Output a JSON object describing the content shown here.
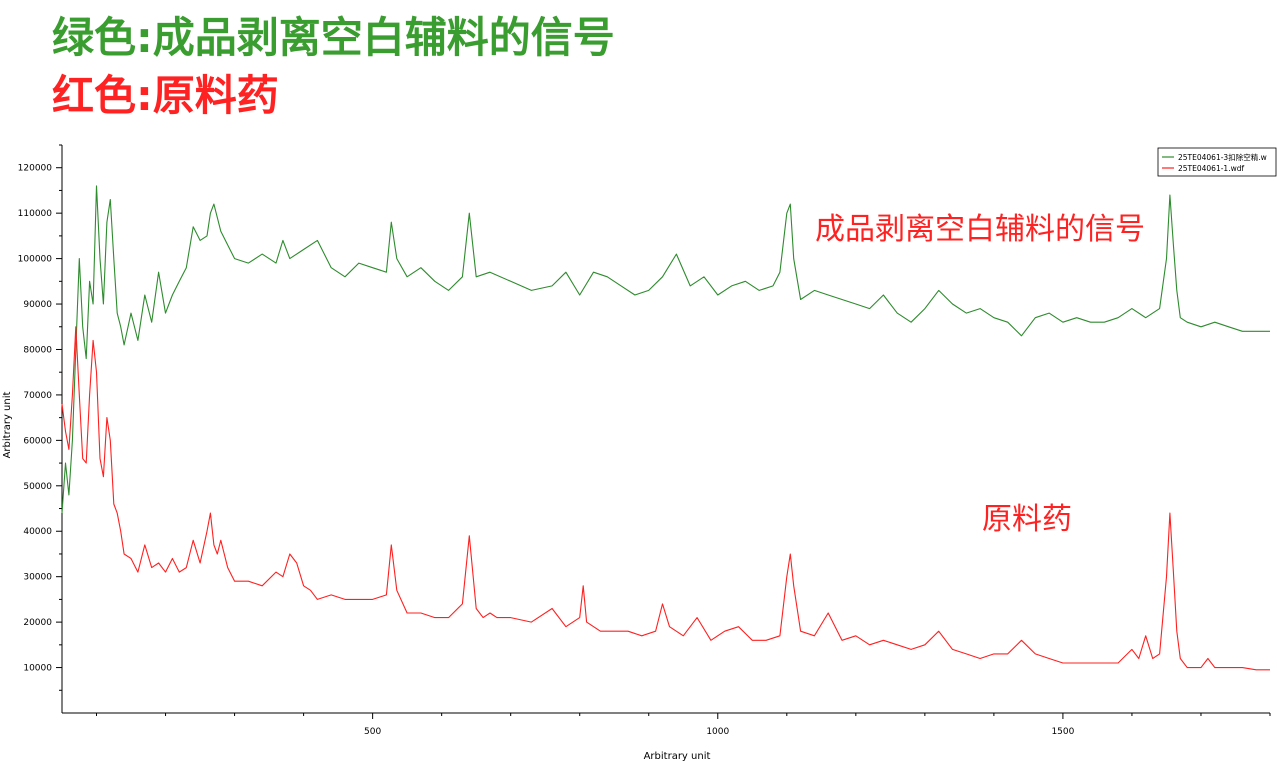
{
  "headings": {
    "green_line": "绿色:成品剥离空白辅料的信号",
    "red_line": "红色:原料药"
  },
  "annotations": {
    "green": "成品剥离空白辅料的信号",
    "red": "原料药"
  },
  "colors": {
    "green": "#3a9d2f",
    "red": "#ff2222",
    "green_series": "#2e8b2e",
    "red_series": "#ff2020"
  },
  "chart_data": {
    "type": "line",
    "xlabel": "Arbitrary unit",
    "ylabel": "Arbitrary unit",
    "xlim": [
      50,
      1800
    ],
    "ylim": [
      0,
      125000
    ],
    "xticks": [
      500,
      1000,
      1500
    ],
    "yticks": [
      10000,
      20000,
      30000,
      40000,
      50000,
      60000,
      70000,
      80000,
      90000,
      100000,
      110000,
      120000
    ],
    "legend_position": "top-right",
    "grid": false,
    "series": [
      {
        "name": "25TE04061-3扣除空精.w",
        "color": "green",
        "x": [
          50,
          55,
          60,
          65,
          70,
          75,
          80,
          85,
          90,
          95,
          100,
          105,
          110,
          115,
          120,
          125,
          130,
          135,
          140,
          150,
          160,
          170,
          180,
          190,
          200,
          210,
          220,
          230,
          240,
          250,
          260,
          265,
          270,
          280,
          290,
          300,
          320,
          340,
          360,
          370,
          380,
          400,
          420,
          440,
          460,
          480,
          500,
          520,
          527,
          535,
          550,
          570,
          590,
          610,
          630,
          640,
          650,
          670,
          700,
          730,
          760,
          780,
          800,
          820,
          840,
          860,
          880,
          900,
          920,
          940,
          960,
          980,
          1000,
          1020,
          1040,
          1060,
          1080,
          1090,
          1100,
          1105,
          1110,
          1120,
          1140,
          1160,
          1180,
          1200,
          1220,
          1240,
          1260,
          1280,
          1300,
          1320,
          1340,
          1360,
          1380,
          1400,
          1420,
          1440,
          1460,
          1480,
          1500,
          1520,
          1540,
          1560,
          1580,
          1600,
          1620,
          1640,
          1650,
          1655,
          1660,
          1665,
          1670,
          1680,
          1700,
          1720,
          1740,
          1760,
          1780,
          1800
        ],
        "y": [
          44000,
          55000,
          48000,
          60000,
          80000,
          100000,
          85000,
          78000,
          95000,
          90000,
          116000,
          100000,
          90000,
          108000,
          113000,
          100000,
          88000,
          85000,
          81000,
          88000,
          82000,
          92000,
          86000,
          97000,
          88000,
          92000,
          95000,
          98000,
          107000,
          104000,
          105000,
          110000,
          112000,
          106000,
          103000,
          100000,
          99000,
          101000,
          99000,
          104000,
          100000,
          102000,
          104000,
          98000,
          96000,
          99000,
          98000,
          97000,
          108000,
          100000,
          96000,
          98000,
          95000,
          93000,
          96000,
          110000,
          96000,
          97000,
          95000,
          93000,
          94000,
          97000,
          92000,
          97000,
          96000,
          94000,
          92000,
          93000,
          96000,
          101000,
          94000,
          96000,
          92000,
          94000,
          95000,
          93000,
          94000,
          97000,
          110000,
          112000,
          100000,
          91000,
          93000,
          92000,
          91000,
          90000,
          89000,
          92000,
          88000,
          86000,
          89000,
          93000,
          90000,
          88000,
          89000,
          87000,
          86000,
          83000,
          87000,
          88000,
          86000,
          87000,
          86000,
          86000,
          87000,
          89000,
          87000,
          89000,
          100000,
          114000,
          103000,
          93000,
          87000,
          86000,
          85000,
          86000,
          85000,
          84000,
          84000,
          84000
        ]
      },
      {
        "name": "25TE04061-1.wdf",
        "color": "red",
        "x": [
          50,
          55,
          60,
          65,
          70,
          75,
          80,
          85,
          90,
          95,
          100,
          105,
          110,
          115,
          120,
          125,
          130,
          135,
          140,
          150,
          160,
          170,
          180,
          190,
          200,
          210,
          220,
          230,
          240,
          250,
          260,
          265,
          270,
          275,
          280,
          290,
          300,
          320,
          340,
          360,
          370,
          380,
          390,
          400,
          410,
          420,
          440,
          460,
          480,
          500,
          520,
          527,
          535,
          550,
          570,
          590,
          610,
          630,
          640,
          650,
          660,
          670,
          680,
          700,
          730,
          760,
          780,
          800,
          805,
          810,
          830,
          850,
          870,
          890,
          910,
          920,
          930,
          950,
          970,
          990,
          1010,
          1030,
          1050,
          1070,
          1090,
          1100,
          1105,
          1110,
          1120,
          1140,
          1160,
          1180,
          1200,
          1220,
          1240,
          1260,
          1280,
          1300,
          1320,
          1340,
          1360,
          1380,
          1400,
          1420,
          1440,
          1460,
          1480,
          1500,
          1520,
          1540,
          1560,
          1580,
          1600,
          1610,
          1620,
          1630,
          1640,
          1650,
          1655,
          1660,
          1665,
          1670,
          1680,
          1700,
          1710,
          1720,
          1740,
          1760,
          1780,
          1800
        ],
        "y": [
          68000,
          62000,
          58000,
          70000,
          85000,
          70000,
          56000,
          55000,
          70000,
          82000,
          75000,
          56000,
          52000,
          65000,
          60000,
          46000,
          44000,
          40000,
          35000,
          34000,
          31000,
          37000,
          32000,
          33000,
          31000,
          34000,
          31000,
          32000,
          38000,
          33000,
          40000,
          44000,
          37000,
          35000,
          38000,
          32000,
          29000,
          29000,
          28000,
          31000,
          30000,
          35000,
          33000,
          28000,
          27000,
          25000,
          26000,
          25000,
          25000,
          25000,
          26000,
          37000,
          27000,
          22000,
          22000,
          21000,
          21000,
          24000,
          39000,
          23000,
          21000,
          22000,
          21000,
          21000,
          20000,
          23000,
          19000,
          21000,
          28000,
          20000,
          18000,
          18000,
          18000,
          17000,
          18000,
          24000,
          19000,
          17000,
          21000,
          16000,
          18000,
          19000,
          16000,
          16000,
          17000,
          30000,
          35000,
          28000,
          18000,
          17000,
          22000,
          16000,
          17000,
          15000,
          16000,
          15000,
          14000,
          15000,
          18000,
          14000,
          13000,
          12000,
          13000,
          13000,
          16000,
          13000,
          12000,
          11000,
          11000,
          11000,
          11000,
          11000,
          14000,
          12000,
          17000,
          12000,
          13000,
          30000,
          44000,
          31000,
          18000,
          12000,
          10000,
          10000,
          12000,
          10000,
          10000,
          10000,
          9500,
          9500
        ]
      }
    ]
  }
}
